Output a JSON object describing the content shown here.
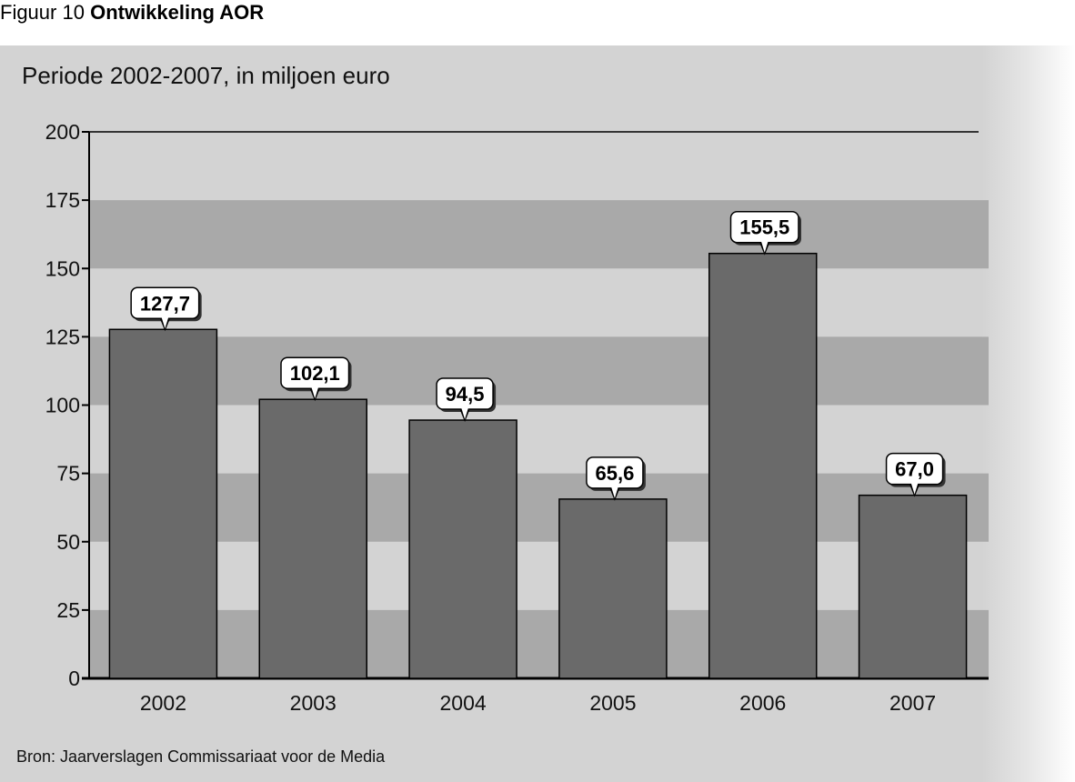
{
  "figure": {
    "number": "Figuur 10",
    "title": "Ontwikkeling AOR"
  },
  "subtitle": "Periode 2002-2007, in miljoen euro",
  "source": "Bron: Jaarverslagen Commissariaat voor de Media",
  "colors": {
    "bar_fill": "#6a6a6a",
    "band_dark": "#a9a9a9",
    "band_light": "#d3d3d3",
    "axis": "#000000",
    "label_bg": "#ffffff"
  },
  "chart_data": {
    "type": "bar",
    "title": "Ontwikkeling AOR",
    "subtitle": "Periode 2002-2007, in miljoen euro",
    "categories": [
      "2002",
      "2003",
      "2004",
      "2005",
      "2006",
      "2007"
    ],
    "values": [
      127.7,
      102.1,
      94.5,
      65.6,
      155.5,
      67.0
    ],
    "value_labels": [
      "127,7",
      "102,1",
      "94,5",
      "65,6",
      "155,5",
      "67,0"
    ],
    "ylim": [
      0,
      200
    ],
    "yticks": [
      0,
      25,
      50,
      75,
      100,
      125,
      150,
      175,
      200
    ],
    "xlabel": "",
    "ylabel": "",
    "grid": "alternating horizontal bands"
  }
}
